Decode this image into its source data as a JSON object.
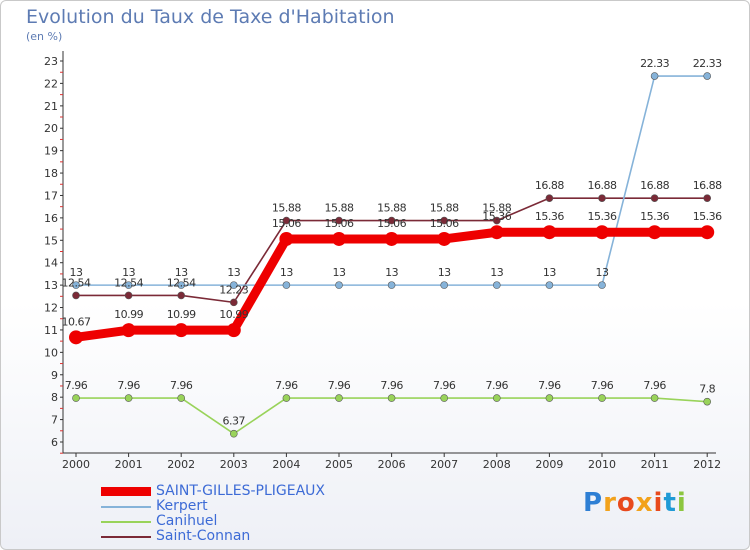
{
  "header": {
    "title": "Evolution du Taux de Taxe d'Habitation",
    "subtitle": "(en %)"
  },
  "chart_data": {
    "type": "line",
    "title": "Evolution du Taux de Taxe d'Habitation",
    "ylabel": "(en %)",
    "xlabel": "",
    "ylim": [
      6,
      23
    ],
    "yticks": [
      "6",
      "7",
      "8",
      "9",
      "10",
      "11",
      "12",
      "13",
      "14",
      "15",
      "16",
      "17",
      "18",
      "19",
      "20",
      "21",
      "22",
      "23"
    ],
    "categories": [
      "2000",
      "2001",
      "2002",
      "2003",
      "2004",
      "2005",
      "2006",
      "2007",
      "2008",
      "2009",
      "2010",
      "2011",
      "2012"
    ],
    "grid": false,
    "legend_position": "bottom-left",
    "series": [
      {
        "name": "Saint-Connan",
        "color": "#7b2a37",
        "values": [
          12.54,
          12.54,
          12.54,
          12.23,
          15.88,
          15.88,
          15.88,
          15.88,
          15.88,
          16.88,
          16.88,
          16.88,
          16.88
        ],
        "labels": [
          "12.54",
          "12.54",
          "12.54",
          "12.23",
          "15.88",
          "15.88",
          "15.88",
          "15.88",
          "15.88",
          "16.88",
          "16.88",
          "16.88",
          "16.88"
        ]
      },
      {
        "name": "Canihuel",
        "color": "#99d35a",
        "values": [
          7.96,
          7.96,
          7.96,
          6.37,
          7.96,
          7.96,
          7.96,
          7.96,
          7.96,
          7.96,
          7.96,
          7.96,
          7.8
        ],
        "labels": [
          "7.96",
          "7.96",
          "7.96",
          "6.37",
          "7.96",
          "7.96",
          "7.96",
          "7.96",
          "7.96",
          "7.96",
          "7.96",
          "7.96",
          "7.8"
        ]
      },
      {
        "name": "Kerpert",
        "color": "#86b3d9",
        "values": [
          13,
          13,
          13,
          13,
          13,
          13,
          13,
          13,
          13,
          13,
          13,
          22.33,
          22.33
        ],
        "labels": [
          "13",
          "13",
          "13",
          "13",
          "13",
          "13",
          "13",
          "13",
          "13",
          "13",
          "13",
          "22.33",
          "22.33"
        ]
      },
      {
        "name": "SAINT-GILLES-PLIGEAUX",
        "color": "#ee0000",
        "values": [
          10.67,
          10.99,
          10.99,
          10.99,
          15.06,
          15.06,
          15.06,
          15.06,
          15.36,
          15.36,
          15.36,
          15.36,
          15.36
        ],
        "labels": [
          "10.67",
          "10.99",
          "10.99",
          "10.99",
          "15.06",
          "15.06",
          "15.06",
          "15.06",
          "15.36",
          "15.36",
          "15.36",
          "15.36",
          "15.36"
        ]
      }
    ]
  },
  "legend": {
    "items": [
      {
        "label": "SAINT-GILLES-PLIGEAUX",
        "color": "#ee0000"
      },
      {
        "label": "Kerpert",
        "color": "#86b3d9"
      },
      {
        "label": "Canihuel",
        "color": "#99d35a"
      },
      {
        "label": "Saint-Connan",
        "color": "#7b2a37"
      }
    ]
  },
  "logo": {
    "letters": [
      "P",
      "r",
      "o",
      "x",
      "i",
      "t",
      "i"
    ],
    "colors": [
      "#2e7fd4",
      "#f2a21c",
      "#e8491d",
      "#f2a21c",
      "#e8491d",
      "#1f9ad6",
      "#8cc63f"
    ]
  }
}
